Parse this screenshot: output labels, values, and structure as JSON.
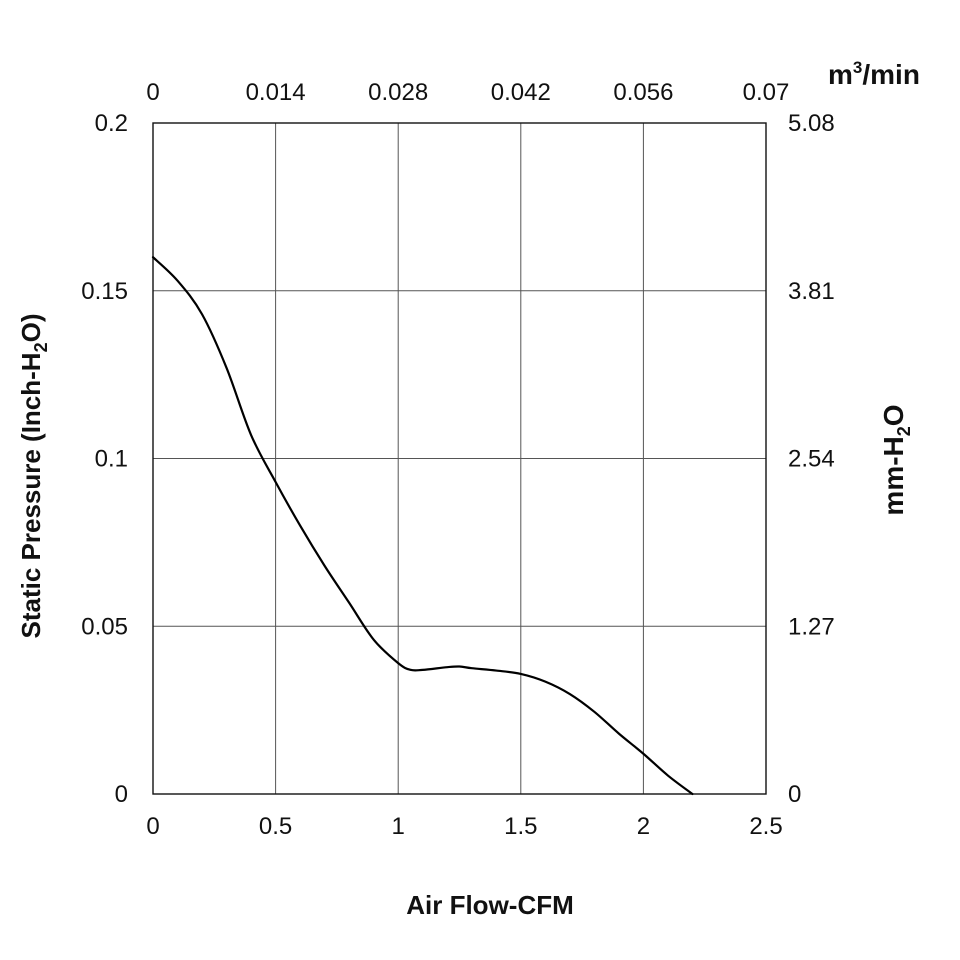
{
  "chart_data": {
    "type": "line",
    "title": "",
    "xlabel": "Air Flow-CFM",
    "ylabel": {
      "main": "Static Pressure (Inch-H",
      "sub": "2",
      "end": "O)"
    },
    "x2label": {
      "main": "m",
      "sup": "3",
      "end": "/min"
    },
    "y2label": {
      "main": "mm-H",
      "sub": "2",
      "end": "O"
    },
    "xlim": [
      0,
      2.5
    ],
    "ylim": [
      0,
      0.2
    ],
    "x_ticks": [
      "0",
      "0.5",
      "1",
      "1.5",
      "2",
      "2.5"
    ],
    "y_ticks": [
      "0",
      "0.05",
      "0.1",
      "0.15",
      "0.2"
    ],
    "x2_ticks": [
      "0",
      "0.014",
      "0.028",
      "0.042",
      "0.056",
      "0.07"
    ],
    "y2_ticks": [
      "0",
      "1.27",
      "2.54",
      "3.81",
      "5.08"
    ],
    "grid": true,
    "series": [
      {
        "name": "Static Pressure",
        "x": [
          0,
          0.1,
          0.2,
          0.3,
          0.4,
          0.5,
          0.6,
          0.7,
          0.8,
          0.9,
          1.0,
          1.05,
          1.1,
          1.2,
          1.25,
          1.3,
          1.4,
          1.5,
          1.6,
          1.7,
          1.8,
          1.9,
          2.0,
          2.1,
          2.2
        ],
        "y": [
          0.16,
          0.153,
          0.143,
          0.127,
          0.107,
          0.093,
          0.08,
          0.068,
          0.057,
          0.046,
          0.039,
          0.037,
          0.037,
          0.0378,
          0.038,
          0.0375,
          0.0368,
          0.0358,
          0.0335,
          0.0298,
          0.0245,
          0.018,
          0.012,
          0.0055,
          0.0
        ]
      }
    ]
  }
}
